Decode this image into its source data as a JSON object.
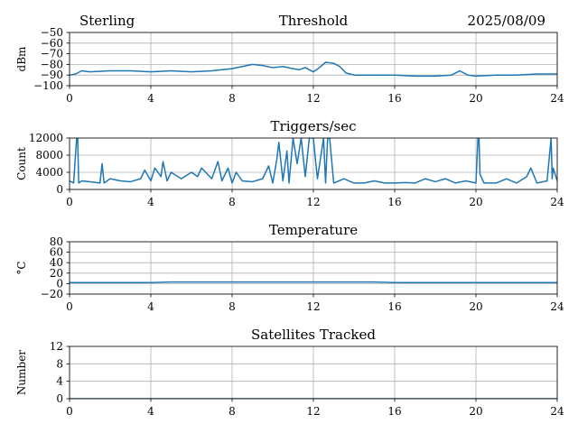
{
  "header": {
    "station": "Sterling",
    "date": "2025/08/09"
  },
  "chart_data": [
    {
      "type": "line",
      "title": "Threshold",
      "ylabel": "dBm",
      "xlim": [
        0,
        24
      ],
      "ylim": [
        -100,
        -50
      ],
      "xticks": [
        0,
        4,
        8,
        12,
        16,
        20,
        24
      ],
      "yticks": [
        -100,
        -90,
        -80,
        -70,
        -60,
        -50
      ],
      "ytick_labels": [
        "−100",
        "−90",
        "−80",
        "−70",
        "−60",
        "−50"
      ],
      "grid": true,
      "x": [
        0,
        0.3,
        0.6,
        1.0,
        2.0,
        3.0,
        4.0,
        5.0,
        6.0,
        7.0,
        7.5,
        8.0,
        8.5,
        9.0,
        9.5,
        10.0,
        10.5,
        11.0,
        11.3,
        11.6,
        12.0,
        12.3,
        12.6,
        13.0,
        13.3,
        13.6,
        14.0,
        15.0,
        16.0,
        17.0,
        18.0,
        18.8,
        19.2,
        19.6,
        20.0,
        21.0,
        22.0,
        23.0,
        24.0
      ],
      "values": [
        -90,
        -89,
        -86,
        -87,
        -86,
        -86,
        -87,
        -86,
        -87,
        -86,
        -85,
        -84,
        -82,
        -80,
        -81,
        -83,
        -82,
        -84,
        -85,
        -83,
        -87,
        -83,
        -78,
        -79,
        -82,
        -88,
        -90,
        -90,
        -90,
        -91,
        -91,
        -90,
        -86,
        -90,
        -91,
        -90,
        -90,
        -89,
        -89
      ]
    },
    {
      "type": "line",
      "title": "Triggers/sec",
      "ylabel": "Count",
      "xlim": [
        0,
        24
      ],
      "ylim": [
        0,
        12000
      ],
      "xticks": [
        0,
        4,
        8,
        12,
        16,
        20,
        24
      ],
      "yticks": [
        0,
        4000,
        8000,
        12000
      ],
      "grid": true,
      "x": [
        0,
        0.2,
        0.35,
        0.4,
        0.45,
        0.6,
        1.0,
        1.5,
        1.6,
        1.7,
        2.0,
        2.5,
        3.0,
        3.5,
        3.7,
        4.0,
        4.2,
        4.5,
        4.6,
        4.8,
        5.0,
        5.5,
        6.0,
        6.3,
        6.5,
        7.0,
        7.3,
        7.5,
        7.8,
        8.0,
        8.2,
        8.5,
        9.0,
        9.5,
        9.8,
        10.0,
        10.2,
        10.3,
        10.5,
        10.7,
        10.8,
        11.0,
        11.2,
        11.4,
        11.6,
        11.8,
        11.9,
        12.0,
        12.1,
        12.2,
        12.5,
        12.6,
        12.7,
        12.8,
        13.0,
        13.5,
        14.0,
        14.5,
        15.0,
        15.5,
        16.0,
        16.5,
        17.0,
        17.5,
        18.0,
        18.5,
        19.0,
        19.5,
        20.0,
        20.1,
        20.15,
        20.2,
        20.4,
        21.0,
        21.5,
        22.0,
        22.5,
        22.7,
        23.0,
        23.5,
        23.7,
        23.75,
        23.8,
        24.0
      ],
      "values": [
        2000,
        1500,
        12000,
        12000,
        1500,
        2000,
        1800,
        1500,
        6000,
        1500,
        2500,
        2000,
        1800,
        2500,
        4500,
        2000,
        5000,
        3000,
        6500,
        2000,
        4000,
        2500,
        4000,
        3000,
        5000,
        2500,
        6500,
        2000,
        5000,
        1500,
        4000,
        2000,
        1800,
        2500,
        5500,
        1500,
        7000,
        11000,
        2000,
        9000,
        1500,
        12000,
        6000,
        12000,
        3000,
        12000,
        12000,
        12000,
        7000,
        2500,
        12000,
        1500,
        12000,
        12000,
        1500,
        2500,
        1500,
        1500,
        2000,
        1500,
        1500,
        1600,
        1500,
        2500,
        1800,
        2500,
        1500,
        2000,
        1500,
        12000,
        12000,
        3500,
        1500,
        1500,
        2500,
        1500,
        3000,
        5000,
        1500,
        2000,
        12000,
        2500,
        5000,
        2000
      ]
    },
    {
      "type": "line",
      "title": "Temperature",
      "ylabel": "°C",
      "xlim": [
        0,
        24
      ],
      "ylim": [
        -20,
        80
      ],
      "xticks": [
        0,
        4,
        8,
        12,
        16,
        20,
        24
      ],
      "yticks": [
        -20,
        0,
        20,
        40,
        60,
        80
      ],
      "ytick_labels": [
        "−20",
        "0",
        "20",
        "40",
        "60",
        "80"
      ],
      "grid": true,
      "x": [
        0,
        4,
        5,
        8,
        9,
        12,
        15,
        16,
        20,
        24
      ],
      "values": [
        2,
        2,
        3,
        3,
        3,
        3,
        3,
        2,
        2,
        2
      ]
    },
    {
      "type": "line",
      "title": "Satellites Tracked",
      "ylabel": "Number",
      "xlim": [
        0,
        24
      ],
      "ylim": [
        0,
        12
      ],
      "xticks": [
        0,
        4,
        8,
        12,
        16,
        20,
        24
      ],
      "yticks": [
        0,
        4,
        8,
        12
      ],
      "grid": true,
      "x": [
        0,
        24
      ],
      "values": [
        0,
        0
      ]
    }
  ]
}
